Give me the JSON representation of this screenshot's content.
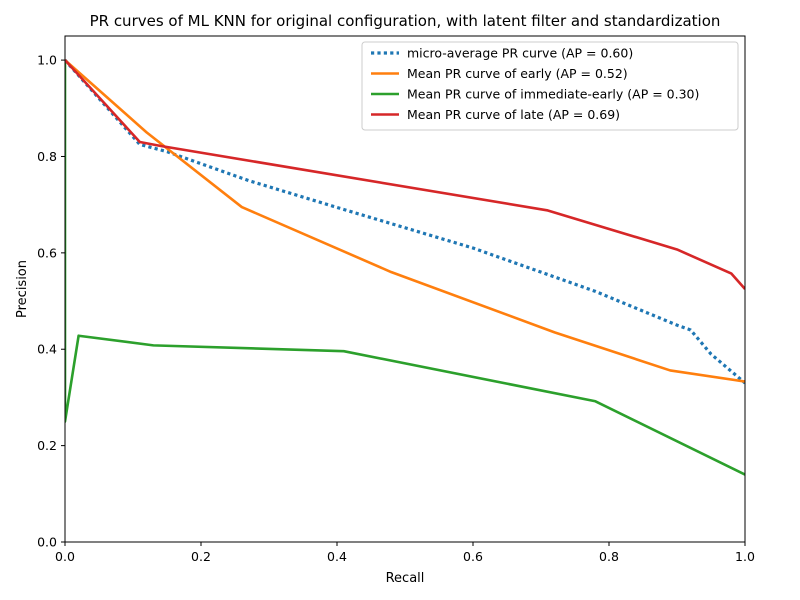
{
  "chart_data": {
    "type": "line",
    "title": "PR curves of ML KNN for original configuration, with latent filter and standardization",
    "xlabel": "Recall",
    "ylabel": "Precision",
    "xlim": [
      0.0,
      1.0
    ],
    "ylim": [
      0.0,
      1.05
    ],
    "xticks": [
      0.0,
      0.2,
      0.4,
      0.6,
      0.8,
      1.0
    ],
    "yticks": [
      0.0,
      0.2,
      0.4,
      0.6,
      0.8,
      1.0
    ],
    "xtick_labels": [
      "0.0",
      "0.2",
      "0.4",
      "0.6",
      "0.8",
      "1.0"
    ],
    "ytick_labels": [
      "0.0",
      "0.2",
      "0.4",
      "0.6",
      "0.8",
      "1.0"
    ],
    "grid": false,
    "legend_position": "top-right",
    "series": [
      {
        "name": "micro-average PR curve (AP = 0.60)",
        "color": "#1f77b4",
        "style": "dotted",
        "x": [
          0.0,
          0.11,
          0.15,
          0.27,
          0.41,
          0.6,
          0.78,
          0.9,
          0.92,
          0.95,
          1.0
        ],
        "y": [
          1.0,
          0.825,
          0.81,
          0.75,
          0.69,
          0.61,
          0.52,
          0.45,
          0.44,
          0.39,
          0.33
        ]
      },
      {
        "name": "Mean PR curve of early (AP = 0.52)",
        "color": "#ff7f0e",
        "style": "solid",
        "x": [
          0.0,
          0.12,
          0.26,
          0.48,
          0.72,
          0.89,
          1.0
        ],
        "y": [
          1.0,
          0.85,
          0.695,
          0.56,
          0.435,
          0.356,
          0.333
        ]
      },
      {
        "name": "Mean PR curve of immediate-early (AP = 0.30)",
        "color": "#2ca02c",
        "style": "solid",
        "x": [
          0.0,
          0.0,
          0.02,
          0.13,
          0.41,
          0.78,
          1.0
        ],
        "y": [
          1.0,
          0.25,
          0.428,
          0.408,
          0.396,
          0.292,
          0.14
        ]
      },
      {
        "name": "Mean PR curve of late (AP = 0.69)",
        "color": "#d62728",
        "style": "solid",
        "x": [
          0.0,
          0.11,
          0.14,
          0.71,
          0.9,
          0.98,
          1.0
        ],
        "y": [
          1.0,
          0.83,
          0.822,
          0.688,
          0.607,
          0.557,
          0.525
        ]
      }
    ]
  }
}
